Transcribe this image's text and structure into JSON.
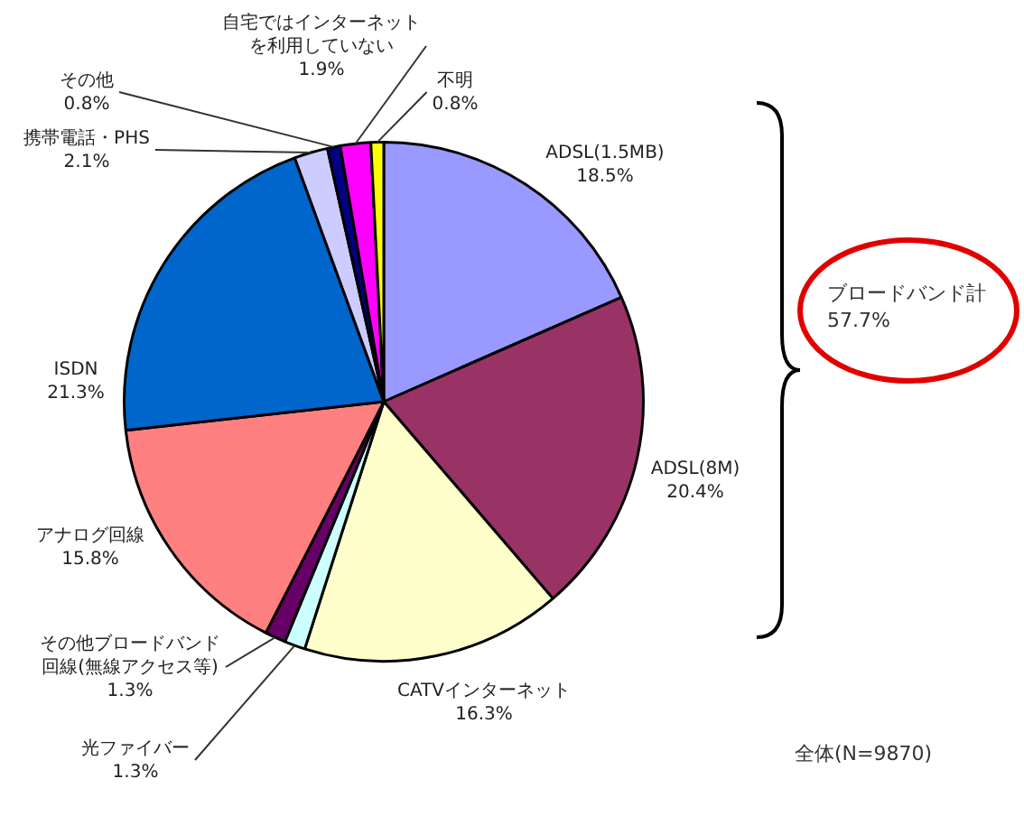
{
  "chart_data": {
    "type": "pie",
    "categories": [
      "ADSL(1.5MB)",
      "ADSL(8M)",
      "CATVインターネット",
      "光ファイバー",
      "その他ブロードバンド回線(無線アクセス等)",
      "アナログ回線",
      "ISDN",
      "携帯電話・PHS",
      "その他",
      "自宅ではインターネットを利用していない",
      "不明"
    ],
    "values": [
      18.5,
      20.4,
      16.3,
      1.3,
      1.3,
      15.8,
      21.3,
      2.1,
      0.8,
      1.9,
      0.8
    ],
    "value_labels": [
      "18.5%",
      "20.4%",
      "16.3%",
      "1.3%",
      "1.3%",
      "15.8%",
      "21.3%",
      "2.1%",
      "0.8%",
      "1.9%",
      "0.8%"
    ],
    "colors": [
      "#9999ff",
      "#993366",
      "#ffffcc",
      "#ccffff",
      "#660066",
      "#ff8080",
      "#0066cc",
      "#ccccff",
      "#000080",
      "#ff00ff",
      "#ffff00"
    ],
    "legend": false,
    "annotations": [
      "ブロードバンド計 57.7%",
      "全体(N=9870)"
    ]
  }
}
